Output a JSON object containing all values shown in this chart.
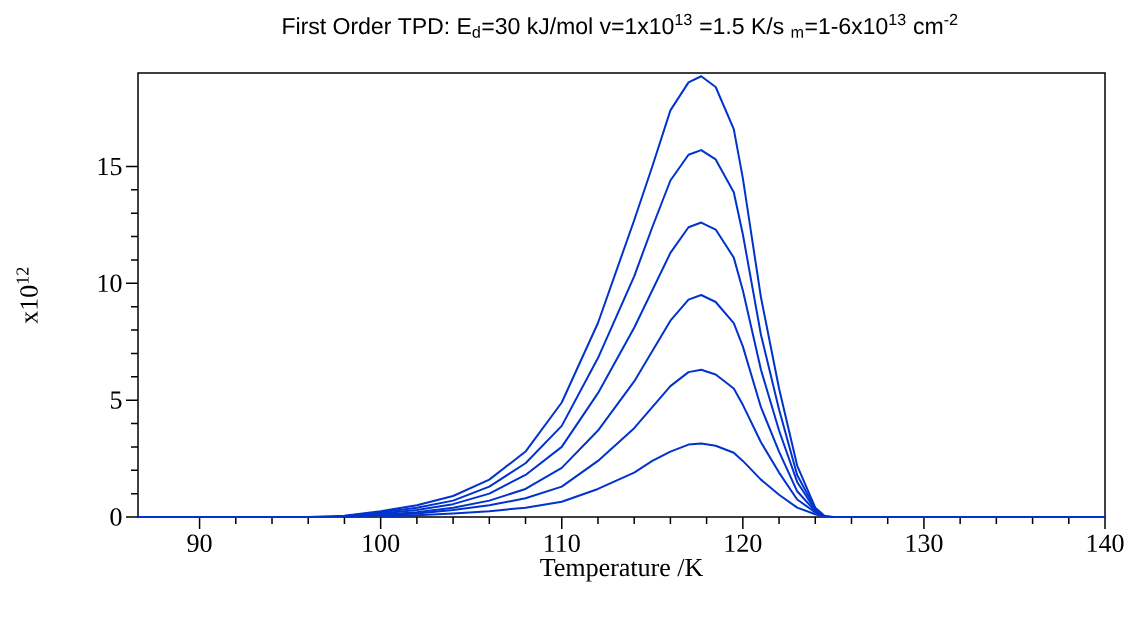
{
  "chart_data": {
    "type": "line",
    "title": "First Order TPD:  E$_{d}$=30 kJ/mol  v=1x10$^{13}$   =1.5 K/s   $_{m}$=1-6x10$^{13}$ cm$^{-2}$",
    "xlabel": "Temperature /K",
    "ylabel": "x10$^{12}$",
    "x": [
      86.6,
      96,
      98,
      100,
      102,
      104,
      106,
      108,
      110,
      112,
      114,
      115,
      116,
      117,
      117.7,
      118.5,
      119.5,
      120,
      121,
      122,
      123,
      124,
      124.5,
      125,
      140
    ],
    "series": [
      {
        "color": "#0033cc",
        "x": [
          100,
          102,
          104,
          106,
          108,
          110,
          112,
          114,
          115,
          116,
          117,
          117.7,
          118.5,
          119.5,
          120,
          121,
          122,
          123,
          124,
          124.5
        ],
        "values": [
          0.03,
          0.08,
          0.15,
          0.25,
          0.4,
          0.65,
          1.2,
          1.9,
          2.4,
          2.8,
          3.1,
          3.15,
          3.05,
          2.75,
          2.4,
          1.6,
          0.95,
          0.4,
          0.12,
          0.02
        ]
      },
      {
        "color": "#0033cc",
        "x": [
          98,
          100,
          102,
          104,
          106,
          108,
          110,
          112,
          114,
          115,
          116,
          117,
          117.7,
          118.5,
          119.5,
          120,
          121,
          122,
          123,
          124,
          124.5
        ],
        "values": [
          0.01,
          0.07,
          0.15,
          0.3,
          0.5,
          0.8,
          1.3,
          2.4,
          3.8,
          4.7,
          5.6,
          6.2,
          6.3,
          6.1,
          5.5,
          4.8,
          3.2,
          1.9,
          0.75,
          0.2,
          0.02
        ]
      },
      {
        "color": "#0033cc",
        "x": [
          98,
          100,
          102,
          104,
          106,
          108,
          110,
          112,
          114,
          115,
          116,
          117,
          117.7,
          118.5,
          119.5,
          120,
          121,
          122,
          123,
          124,
          124.5
        ],
        "values": [
          0.02,
          0.1,
          0.2,
          0.4,
          0.7,
          1.2,
          2.1,
          3.7,
          5.8,
          7.1,
          8.4,
          9.3,
          9.5,
          9.2,
          8.3,
          7.3,
          4.7,
          2.8,
          1.1,
          0.25,
          0.03
        ]
      },
      {
        "color": "#0033cc",
        "x": [
          98,
          100,
          102,
          104,
          106,
          108,
          110,
          112,
          114,
          115,
          116,
          117,
          117.7,
          118.5,
          119.5,
          120,
          121,
          122,
          123,
          124,
          124.5
        ],
        "values": [
          0.03,
          0.15,
          0.3,
          0.55,
          1.0,
          1.8,
          3.0,
          5.3,
          8.1,
          9.7,
          11.3,
          12.4,
          12.6,
          12.3,
          11.1,
          9.7,
          6.3,
          3.7,
          1.5,
          0.3,
          0.03
        ]
      },
      {
        "color": "#0033cc",
        "x": [
          98,
          100,
          102,
          104,
          106,
          108,
          110,
          112,
          114,
          115,
          116,
          117,
          117.7,
          118.5,
          119.5,
          120,
          121,
          122,
          123,
          124,
          124.5
        ],
        "values": [
          0.04,
          0.2,
          0.4,
          0.7,
          1.3,
          2.3,
          3.9,
          6.8,
          10.3,
          12.4,
          14.4,
          15.5,
          15.7,
          15.3,
          13.9,
          12.1,
          7.8,
          4.6,
          1.8,
          0.35,
          0.04
        ]
      },
      {
        "color": "#0033cc",
        "values": [
          0,
          0,
          0.05,
          0.25,
          0.5,
          0.9,
          1.6,
          2.8,
          4.9,
          8.3,
          12.7,
          15.0,
          17.4,
          18.6,
          18.86,
          18.4,
          16.6,
          14.5,
          9.4,
          5.5,
          2.2,
          0.4,
          0.05,
          0,
          0
        ]
      }
    ],
    "xlim": [
      86.6,
      140
    ],
    "xticks": [
      90,
      100,
      110,
      120,
      130,
      140
    ],
    "ylim": [
      0,
      19
    ],
    "yticks": [
      0,
      5,
      10,
      15
    ],
    "grid": false,
    "legend": false,
    "marker": "none",
    "line_style": "solid"
  }
}
